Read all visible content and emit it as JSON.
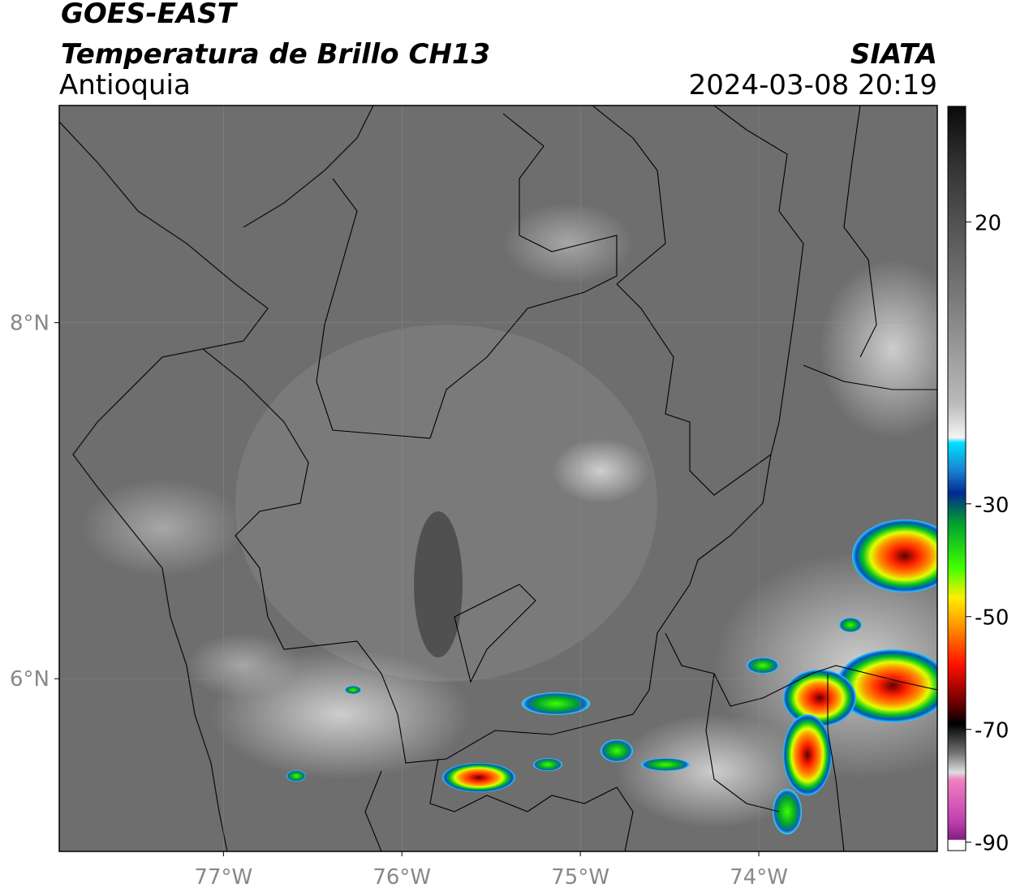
{
  "header": {
    "title": "GOES-EAST",
    "subtitle": "Temperatura de Brillo CH13",
    "region": "Antioquia",
    "source": "SIATA",
    "datetime": "2024-03-08 20:19"
  },
  "map": {
    "xlim": [
      -77.92,
      -73.0
    ],
    "ylim": [
      5.03,
      9.22
    ],
    "xticks": [
      {
        "value": -77,
        "label": "77°W"
      },
      {
        "value": -76,
        "label": "76°W"
      },
      {
        "value": -75,
        "label": "75°W"
      },
      {
        "value": -74,
        "label": "74°W"
      }
    ],
    "yticks": [
      {
        "value": 8,
        "label": "8°N"
      },
      {
        "value": 6,
        "label": "6°N"
      }
    ],
    "grid": true
  },
  "colorbar": {
    "lim": [
      -91.5,
      40.5
    ],
    "ticks": [
      20,
      -30,
      -50,
      -70,
      -90
    ]
  }
}
